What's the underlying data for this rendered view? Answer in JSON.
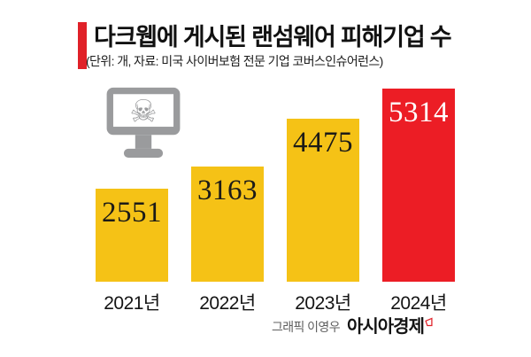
{
  "header": {
    "title": "다크웹에 게시된 랜섬웨어 피해기업 수",
    "subtitle": "(단위: 개, 자료: 미국 사이버보험 전문 기업 코버스인슈어런스)"
  },
  "chart_data": {
    "type": "bar",
    "categories": [
      "2021년",
      "2022년",
      "2023년",
      "2024년"
    ],
    "values": [
      2551,
      3163,
      4475,
      5314
    ],
    "bar_colors": [
      "#F5C216",
      "#F5C216",
      "#F5C216",
      "#EC1D25"
    ],
    "value_label_colors": [
      "#1c1b17",
      "#1c1b17",
      "#1c1b17",
      "#ffffff"
    ],
    "title": "다크웹에 게시된 랜섬웨어 피해기업 수",
    "unit_note": "(단위: 개, 자료: 미국 사이버보험 전문 기업 코버스인슈어런스)",
    "xlabel": "",
    "ylabel": "",
    "ylim": [
      0,
      5314
    ],
    "grid": false,
    "legend": "none",
    "value_labels_shown": true
  },
  "icons": {
    "skull_glyph": "☠",
    "malware_icon_name": "monitor-with-skull-and-crossbones",
    "brand_mark_name": "asiae-red-flag-mark"
  },
  "footer": {
    "credit_prefix": "그래픽 이영우",
    "brand": "아시아경제"
  },
  "colors": {
    "accent_red": "#E02128",
    "bar_red": "#EC1D25",
    "bar_yellow": "#F5C216",
    "icon_gray": "#9a9b9d",
    "background": "#ffffff"
  }
}
